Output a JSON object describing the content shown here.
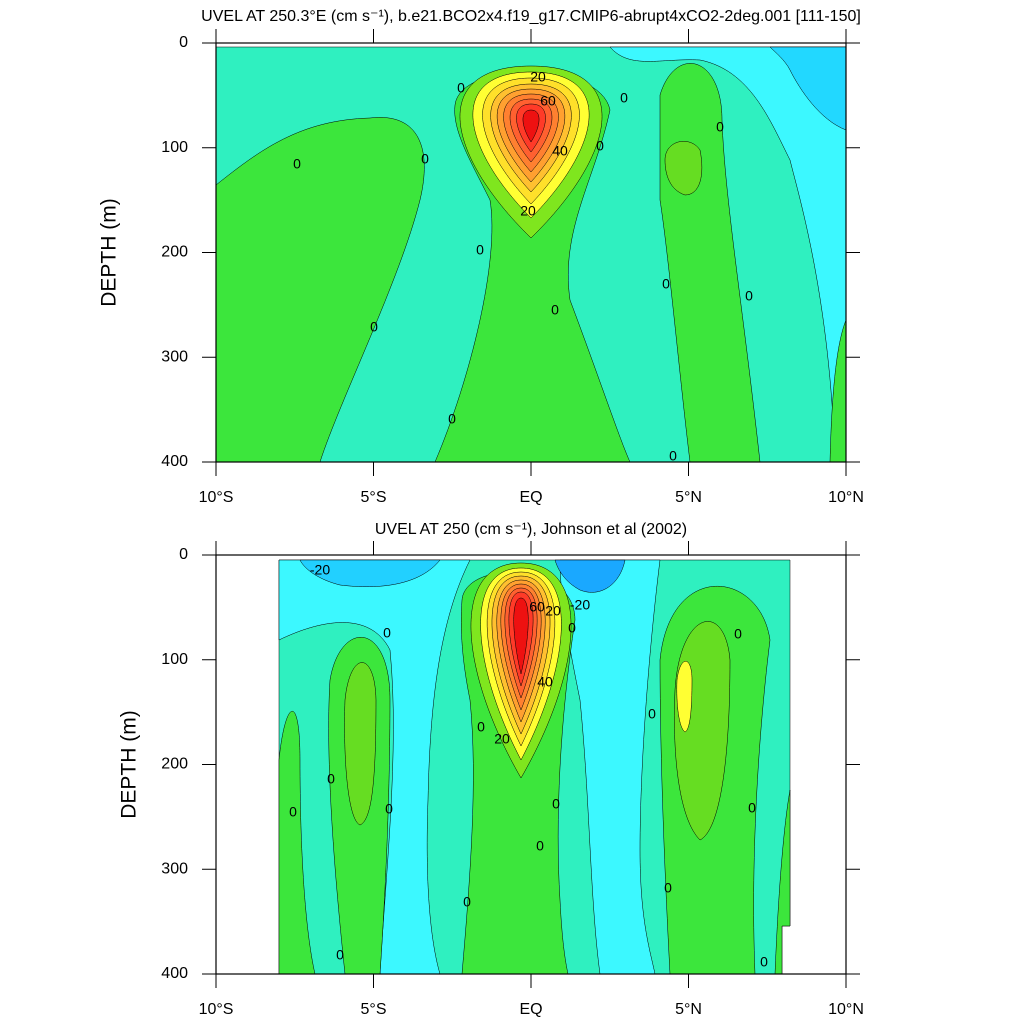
{
  "chart_data": [
    {
      "type": "contour",
      "title": "UVEL AT 250.3°E (cm s⁻¹), b.e21.BCO2x4.f19_g17.CMIP6-abrupt4xCO2-2deg.001 [111-150]",
      "ylabel": "DEPTH (m)",
      "xlim": [
        -10,
        10
      ],
      "xticks": [
        {
          "value": -10,
          "label": "10°S"
        },
        {
          "value": -5,
          "label": "5°S"
        },
        {
          "value": 0,
          "label": "EQ"
        },
        {
          "value": 5,
          "label": "5°N"
        },
        {
          "value": 10,
          "label": "10°N"
        }
      ],
      "ylim": [
        400,
        0
      ],
      "yticks": [
        0,
        100,
        200,
        300,
        400
      ],
      "contour_labels": [
        20,
        60,
        40,
        20,
        0,
        0,
        0,
        0,
        0,
        0,
        0,
        0,
        0,
        0,
        0,
        0,
        0
      ]
    },
    {
      "type": "contour",
      "title": "UVEL AT 250 (cm s⁻¹), Johnson et al (2002)",
      "ylabel": "DEPTH (m)",
      "xlim": [
        -10,
        10
      ],
      "xticks": [
        {
          "value": -10,
          "label": "10°S"
        },
        {
          "value": -5,
          "label": "5°S"
        },
        {
          "value": 0,
          "label": "EQ"
        },
        {
          "value": 5,
          "label": "5°N"
        },
        {
          "value": 10,
          "label": "10°N"
        }
      ],
      "ylim": [
        400,
        0
      ],
      "yticks": [
        0,
        100,
        200,
        300,
        400
      ],
      "contour_labels": [
        -20,
        -20,
        20,
        20,
        60,
        40,
        0,
        0,
        0,
        0,
        0,
        0,
        0,
        0,
        0,
        0,
        0,
        0,
        0,
        0,
        0
      ]
    }
  ]
}
